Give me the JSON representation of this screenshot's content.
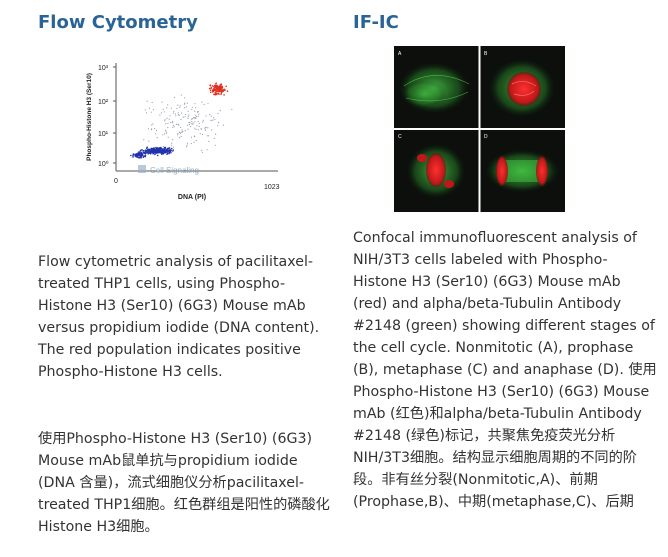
{
  "left": {
    "heading": "Flow Cytometry",
    "figure": {
      "ylabel": "Phospho-Histone H3 (Ser10)",
      "xlabel": "DNA (PI)",
      "y_ticks": [
        "10³",
        "10²",
        "10¹",
        "10⁰"
      ],
      "x_ticks": [
        "0",
        "1023"
      ],
      "watermark": "Cell Signaling"
    },
    "para_en": "Flow cytometric analysis of pacilitaxel-treated THP1 cells, using Phospho-Histone H3 (Ser10) (6G3) Mouse mAb versus propidium iodide (DNA content). The red population indicates positive Phospho-Histone H3 cells.",
    "para_cn": "使用Phospho-Histone H3 (Ser10) (6G3) Mouse mAb鼠单抗与propidium iodide (DNA 含量)，流式细胞仪分析pacilitaxel-treated THP1细胞。红色群组是阳性的磷酸化Histone H3细胞。"
  },
  "right": {
    "heading": "IF-IC",
    "panels": [
      "A",
      "B",
      "C",
      "D"
    ],
    "para": "Confocal immunofluorescent analysis of NIH/3T3 cells labeled with Phospho-Histone H3 (Ser10) (6G3) Mouse mAb (red) and alpha/beta-Tubulin Antibody #2148 (green) showing different stages of the cell cycle. Nonmitotic (A), prophase (B), metaphase (C) and anaphase (D). 使用Phospho-Histone H3 (Ser10) (6G3) Mouse mAb (红色)和alpha/beta-Tubulin Antibody #2148 (绿色)标记，共聚焦免疫荧光分析NIH/3T3细胞。结构显示细胞周期的不同的阶段。非有丝分裂(Nonmitotic,A)、前期(Prophase,B)、中期(metaphase,C)、后期"
  },
  "colors": {
    "heading": "#2a6496",
    "text": "#333333",
    "positive_population": "#e03020",
    "negative_population": "#2233aa",
    "tubulin": "#3fbf3f",
    "histone": "#e02020"
  }
}
